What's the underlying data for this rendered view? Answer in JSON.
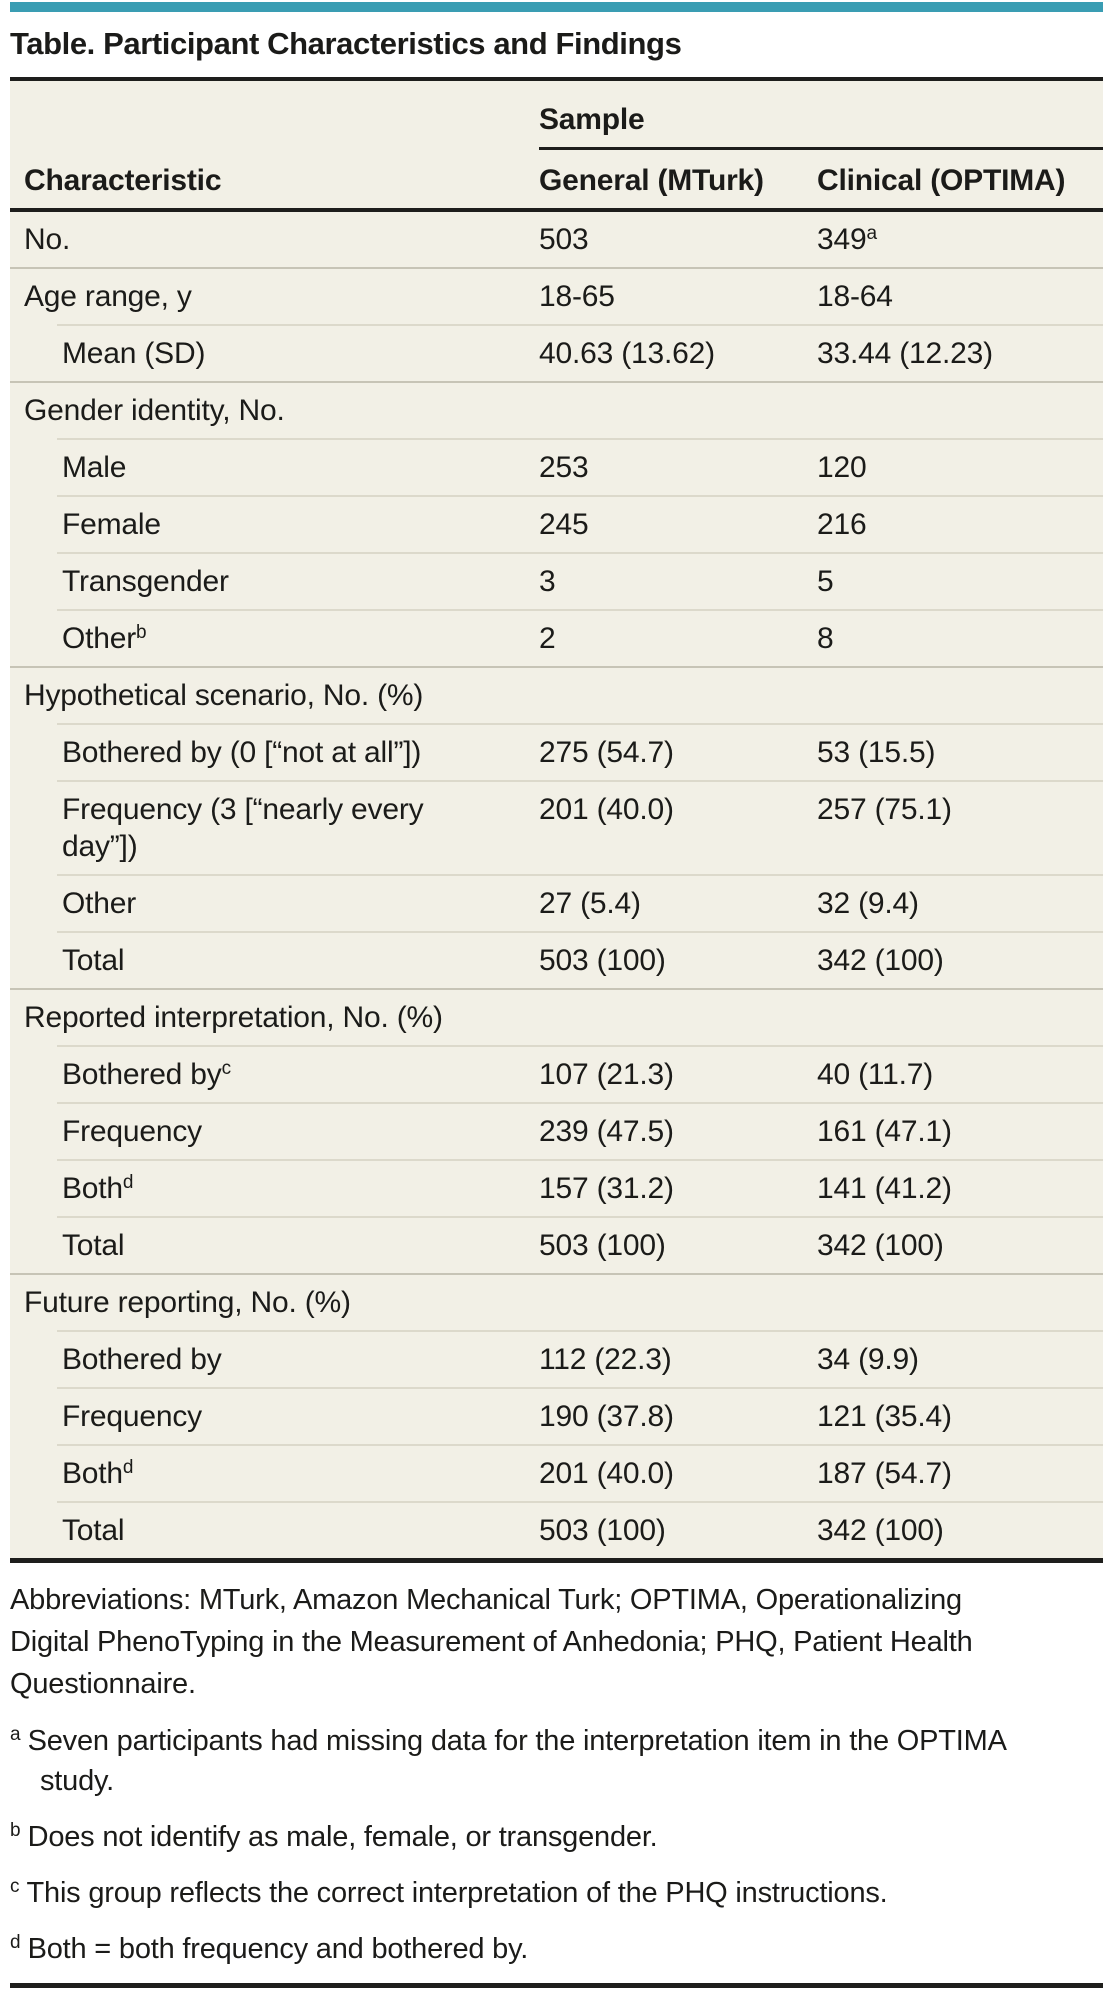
{
  "title": "Table. Participant Characteristics and Findings",
  "colors": {
    "accent": "#3A9DB3",
    "table_background": "#F2F0E6",
    "rule": "#1E1E1C",
    "divider_full": "#C7C4B6",
    "divider_inset": "#DCD9CB"
  },
  "table": {
    "sample_group_label": "Sample",
    "columns": [
      "Characteristic",
      "General (MTurk)",
      "Clinical (OPTIMA)"
    ],
    "rows": [
      {
        "label": "No.",
        "indent": 0,
        "general": "503",
        "clinical": "349",
        "clinical_sup": "a"
      },
      {
        "label": "Age range, y",
        "indent": 0,
        "general": "18-65",
        "clinical": "18-64"
      },
      {
        "label": "Mean (SD)",
        "indent": 1,
        "general": "40.63 (13.62)",
        "clinical": "33.44 (12.23)"
      },
      {
        "label": "Gender identity, No.",
        "indent": 0,
        "general": "",
        "clinical": ""
      },
      {
        "label": "Male",
        "indent": 1,
        "general": "253",
        "clinical": "120"
      },
      {
        "label": "Female",
        "indent": 1,
        "general": "245",
        "clinical": "216"
      },
      {
        "label": "Transgender",
        "indent": 1,
        "general": "3",
        "clinical": "5"
      },
      {
        "label": "Other",
        "label_sup": "b",
        "indent": 1,
        "general": "2",
        "clinical": "8"
      },
      {
        "label": "Hypothetical scenario, No. (%)",
        "indent": 0,
        "general": "",
        "clinical": ""
      },
      {
        "label": "Bothered by (0 [“not at all”])",
        "indent": 1,
        "general": "275 (54.7)",
        "clinical": "53 (15.5)"
      },
      {
        "label": "Frequency (3 [“nearly every day”])",
        "indent": 1,
        "general": "201 (40.0)",
        "clinical": "257 (75.1)"
      },
      {
        "label": "Other",
        "indent": 1,
        "general": "27 (5.4)",
        "clinical": "32 (9.4)"
      },
      {
        "label": "Total",
        "indent": 1,
        "general": "503 (100)",
        "clinical": "342 (100)"
      },
      {
        "label": "Reported interpretation, No. (%)",
        "indent": 0,
        "general": "",
        "clinical": ""
      },
      {
        "label": "Bothered by",
        "label_sup": "c",
        "indent": 1,
        "general": "107 (21.3)",
        "clinical": "40 (11.7)"
      },
      {
        "label": "Frequency",
        "indent": 1,
        "general": "239 (47.5)",
        "clinical": "161 (47.1)"
      },
      {
        "label": "Both",
        "label_sup": "d",
        "indent": 1,
        "general": "157 (31.2)",
        "clinical": "141 (41.2)"
      },
      {
        "label": "Total",
        "indent": 1,
        "general": "503 (100)",
        "clinical": "342 (100)"
      },
      {
        "label": "Future reporting, No. (%)",
        "indent": 0,
        "general": "",
        "clinical": ""
      },
      {
        "label": "Bothered by",
        "indent": 1,
        "general": "112 (22.3)",
        "clinical": "34 (9.9)"
      },
      {
        "label": "Frequency",
        "indent": 1,
        "general": "190 (37.8)",
        "clinical": "121 (35.4)"
      },
      {
        "label": "Both",
        "label_sup": "d",
        "indent": 1,
        "general": "201 (40.0)",
        "clinical": "187 (54.7)"
      },
      {
        "label": "Total",
        "indent": 1,
        "general": "503 (100)",
        "clinical": "342 (100)"
      }
    ]
  },
  "footnotes": {
    "abbreviations": "Abbreviations: MTurk, Amazon Mechanical Turk; OPTIMA, Operationalizing Digital PhenoTyping in the Measurement of Anhedonia; PHQ, Patient Health Questionnaire.",
    "items": [
      {
        "marker": "a",
        "text": "Seven participants had missing data for the interpretation item in the OPTIMA study."
      },
      {
        "marker": "b",
        "text": "Does not identify as male, female, or transgender."
      },
      {
        "marker": "c",
        "text": "This group reflects the correct interpretation of the PHQ instructions."
      },
      {
        "marker": "d",
        "text": "Both = both frequency and bothered by."
      }
    ]
  }
}
